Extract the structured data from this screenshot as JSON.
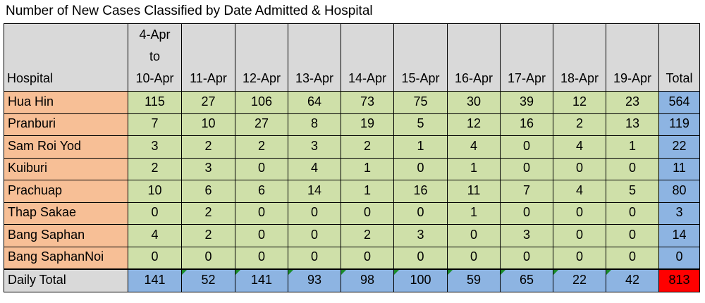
{
  "title": "Number of New Cases Classified by Date Admitted & Hospital",
  "header": {
    "hospital": "Hospital",
    "first_date": [
      "4-Apr",
      "to",
      "10-Apr"
    ],
    "dates": [
      "11-Apr",
      "12-Apr",
      "13-Apr",
      "14-Apr",
      "15-Apr",
      "16-Apr",
      "17-Apr",
      "18-Apr",
      "19-Apr"
    ],
    "total": "Total"
  },
  "footer": {
    "label": "Daily Total"
  },
  "colors": {
    "hospital_cell": "#f7bf96",
    "value_cell": "#cfe0a9",
    "total_cell": "#8db4e2",
    "header_cell": "#d9d9d9",
    "grand_total_cell": "#ff0000",
    "note_marker": "#1a8a2a"
  },
  "chart_data": {
    "type": "table",
    "title": "Number of New Cases Classified by Date Admitted & Hospital",
    "columns": [
      "Hospital",
      "4-Apr to 10-Apr",
      "11-Apr",
      "12-Apr",
      "13-Apr",
      "14-Apr",
      "15-Apr",
      "16-Apr",
      "17-Apr",
      "18-Apr",
      "19-Apr",
      "Total"
    ],
    "rows": [
      {
        "hospital": "Hua Hin",
        "values": [
          115,
          27,
          106,
          64,
          73,
          75,
          30,
          39,
          12,
          23
        ],
        "total": 564
      },
      {
        "hospital": "Pranburi",
        "values": [
          7,
          10,
          27,
          8,
          19,
          5,
          12,
          16,
          2,
          13
        ],
        "total": 119
      },
      {
        "hospital": "Sam Roi Yod",
        "values": [
          3,
          2,
          2,
          3,
          2,
          1,
          4,
          0,
          4,
          1
        ],
        "total": 22
      },
      {
        "hospital": "Kuiburi",
        "values": [
          2,
          3,
          0,
          4,
          1,
          0,
          1,
          0,
          0,
          0
        ],
        "total": 11
      },
      {
        "hospital": "Prachuap",
        "values": [
          10,
          6,
          6,
          14,
          1,
          16,
          11,
          7,
          4,
          5
        ],
        "total": 80
      },
      {
        "hospital": "Thap Sakae",
        "values": [
          0,
          2,
          0,
          0,
          0,
          0,
          1,
          0,
          0,
          0
        ],
        "total": 3
      },
      {
        "hospital": "Bang Saphan",
        "values": [
          4,
          2,
          0,
          0,
          2,
          3,
          0,
          3,
          0,
          0
        ],
        "total": 14
      },
      {
        "hospital": "Bang SaphanNoi",
        "values": [
          0,
          0,
          0,
          0,
          0,
          0,
          0,
          0,
          0,
          0
        ],
        "total": 0
      }
    ],
    "daily_totals": [
      141,
      52,
      141,
      93,
      98,
      100,
      59,
      65,
      22,
      42
    ],
    "grand_total": 813,
    "note_markers": [
      false,
      true,
      true,
      true,
      true,
      true,
      true,
      true,
      true,
      true
    ]
  }
}
